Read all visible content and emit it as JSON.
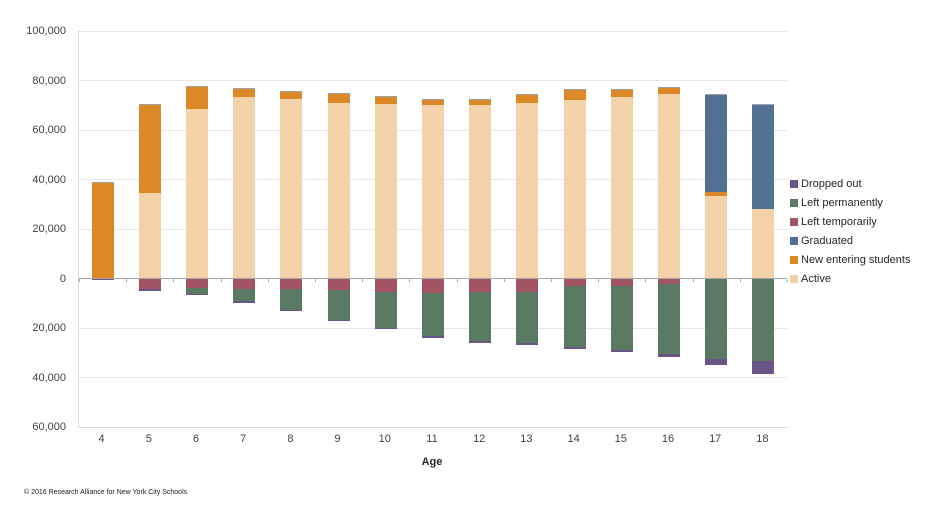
{
  "footer": {
    "copyright": "© 2016 Research Alliance for New York City Schools"
  },
  "chart_data": {
    "type": "bar",
    "stacked": true,
    "diverging": true,
    "title": "",
    "xlabel": "Age",
    "ylabel": "",
    "categories": [
      "4",
      "5",
      "6",
      "7",
      "8",
      "9",
      "10",
      "11",
      "12",
      "13",
      "14",
      "15",
      "16",
      "17",
      "18"
    ],
    "ylim": [
      -60000,
      100000
    ],
    "ytick_interval": 20000,
    "ytick_labels_absolute": true,
    "grid": true,
    "legend_position": "right",
    "colors": {
      "Dropped out": "#6a5588",
      "Left permanently": "#5a7a63",
      "Left temporarily": "#a25465",
      "Graduated": "#537293",
      "New entering students": "#dd8827",
      "Active": "#f3d2aa",
      "bar_top_edge": "#9aa1a9",
      "gridline": "#e7e7e7",
      "zero_axis": "#a6a6a6"
    },
    "legend": [
      {
        "label": "Dropped out",
        "color": "#6a5588"
      },
      {
        "label": "Left permanently",
        "color": "#5a7a63"
      },
      {
        "label": "Left temporarily",
        "color": "#a25465"
      },
      {
        "label": "Graduated",
        "color": "#537293"
      },
      {
        "label": "New entering students",
        "color": "#dd8827"
      },
      {
        "label": "Active",
        "color": "#f3d2aa"
      }
    ],
    "positive_stack": [
      "Active",
      "New entering students",
      "Graduated"
    ],
    "negative_stack": [
      "Left temporarily",
      "Left permanently",
      "Dropped out"
    ],
    "series": [
      {
        "name": "Active",
        "sign": "positive",
        "values": [
          0,
          34500,
          68500,
          73500,
          72500,
          71000,
          70500,
          70000,
          70000,
          71000,
          72000,
          73500,
          74500,
          33500,
          28000
        ]
      },
      {
        "name": "New entering students",
        "sign": "positive",
        "values": [
          38700,
          35500,
          9000,
          3000,
          3000,
          3500,
          3000,
          2000,
          2000,
          3000,
          4000,
          2700,
          2500,
          1500,
          0
        ]
      },
      {
        "name": "Graduated",
        "sign": "positive",
        "values": [
          0,
          0,
          0,
          0,
          0,
          0,
          0,
          0,
          0,
          0,
          0,
          0,
          0,
          39000,
          42000
        ]
      },
      {
        "name": "Left temporarily",
        "sign": "negative",
        "values": [
          0,
          4400,
          3900,
          4100,
          4400,
          4800,
          5500,
          5900,
          5600,
          5400,
          3200,
          2900,
          2400,
          0,
          0
        ]
      },
      {
        "name": "Left permanently",
        "sign": "negative",
        "values": [
          0,
          0,
          2300,
          5100,
          8400,
          11800,
          14300,
          17500,
          19800,
          20800,
          24500,
          25800,
          28000,
          32600,
          33400
        ]
      },
      {
        "name": "Dropped out",
        "sign": "negative",
        "values": [
          700,
          700,
          500,
          500,
          500,
          600,
          700,
          700,
          800,
          800,
          900,
          1000,
          1200,
          2400,
          5000
        ]
      }
    ]
  }
}
